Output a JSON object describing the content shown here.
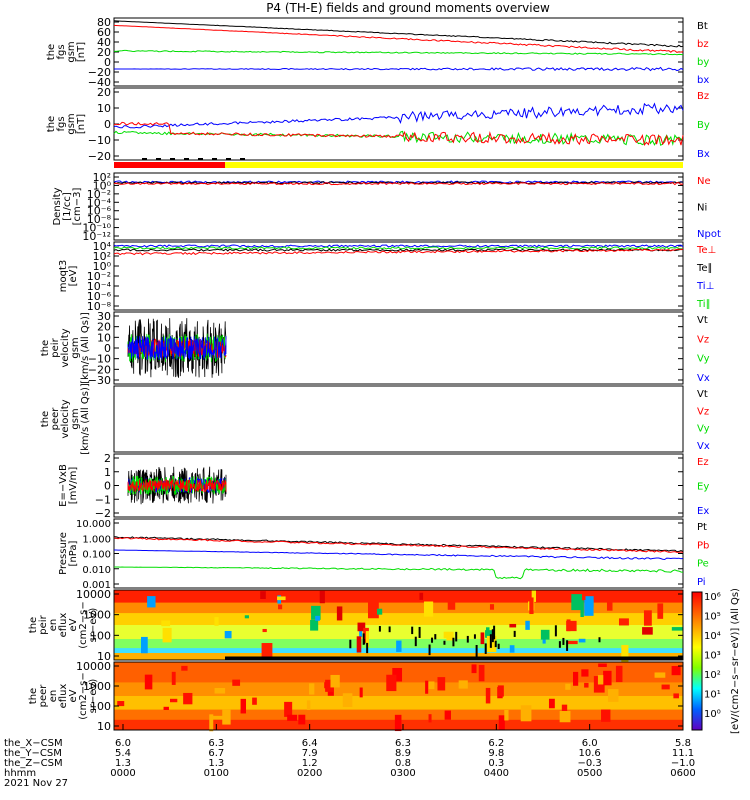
{
  "title": "P4 (TH-E) fields and ground moments overview",
  "colors": {
    "black": "#000000",
    "red": "#ff0000",
    "green": "#00dd00",
    "blue": "#0000ff",
    "yellow": "#ffff00"
  },
  "panels": [
    {
      "id": "fgs-gsm",
      "ylabel": [
        "the",
        "fgs",
        "gsm",
        "[nT]"
      ],
      "yticks": [
        "80",
        "60",
        "40",
        "20",
        "0",
        "−20",
        "−40"
      ],
      "ymin": -40,
      "ymax": 80,
      "legend": [
        {
          "text": "Bt",
          "color": "black"
        },
        {
          "text": "bz",
          "color": "red"
        },
        {
          "text": "by",
          "color": "green"
        },
        {
          "text": "bx",
          "color": "blue"
        }
      ]
    },
    {
      "id": "fgs-gsm2",
      "ylabel": [
        "the",
        "fgs",
        "gsm",
        "[nT]"
      ],
      "yticks": [
        "20",
        "10",
        "0",
        "−10",
        "−20"
      ],
      "ymin": -25,
      "ymax": 30,
      "legend": [
        {
          "text": "Bz",
          "color": "red"
        },
        {
          "text": "By",
          "color": "green"
        },
        {
          "text": "Bx",
          "color": "blue"
        }
      ]
    },
    {
      "id": "density",
      "ylabel": [
        "Density",
        "[1/cc]",
        "[cm−3]"
      ],
      "yticks": [
        "10²",
        "10⁰",
        "10⁻²",
        "10⁻⁴",
        "10⁻⁶",
        "10⁻⁸",
        "10⁻¹⁰",
        "10⁻¹²"
      ],
      "legend": [
        {
          "text": "Ne",
          "color": "red"
        },
        {
          "text": "Ni",
          "color": "black"
        },
        {
          "text": "Npot",
          "color": "blue"
        }
      ]
    },
    {
      "id": "temp",
      "ylabel": [
        "moqt3",
        "[eV]"
      ],
      "yticks": [
        "10⁴",
        "10²",
        "10⁰",
        "10⁻²",
        "10⁻⁴",
        "10⁻⁶",
        "10⁻⁸"
      ],
      "legend": [
        {
          "text": "Te⊥",
          "color": "red"
        },
        {
          "text": "Te∥",
          "color": "black"
        },
        {
          "text": "Ti⊥",
          "color": "blue"
        },
        {
          "text": "Ti∥",
          "color": "green"
        }
      ]
    },
    {
      "id": "peir-vel",
      "ylabel": [
        "the",
        "peir",
        "velocity",
        "gsm",
        "[km/s (All Qs)]"
      ],
      "yticks": [
        "30",
        "20",
        "10",
        "0",
        "−10",
        "−20",
        "−30"
      ],
      "ymin": -30,
      "ymax": 30,
      "legend": [
        {
          "text": "Vt",
          "color": "black"
        },
        {
          "text": "Vz",
          "color": "red"
        },
        {
          "text": "Vy",
          "color": "green"
        },
        {
          "text": "Vx",
          "color": "blue"
        }
      ]
    },
    {
      "id": "peer-vel",
      "ylabel": [
        "the",
        "peer",
        "velocity",
        "gsm",
        "[km/s (All Qs)]"
      ],
      "yticks": [],
      "legend": [
        {
          "text": "Vt",
          "color": "black"
        },
        {
          "text": "Vz",
          "color": "red"
        },
        {
          "text": "Vy",
          "color": "green"
        },
        {
          "text": "Vx",
          "color": "blue"
        }
      ]
    },
    {
      "id": "efield",
      "ylabel": [
        "E=−VxB",
        "[mV/m]"
      ],
      "yticks": [
        "2",
        "1",
        "0",
        "−1",
        "−2"
      ],
      "ymin": -2,
      "ymax": 2,
      "legend": [
        {
          "text": "Ez",
          "color": "red"
        },
        {
          "text": "Ey",
          "color": "green"
        },
        {
          "text": "Ex",
          "color": "blue"
        }
      ]
    },
    {
      "id": "pressure",
      "ylabel": [
        "Pressure",
        "[nPa]"
      ],
      "yticks": [
        "10.000",
        "1.000",
        "0.100",
        "0.010",
        "0.001"
      ],
      "legend": [
        {
          "text": "Pt",
          "color": "black"
        },
        {
          "text": "Pb",
          "color": "red"
        },
        {
          "text": "Pe",
          "color": "green"
        },
        {
          "text": "Pi",
          "color": "blue"
        }
      ]
    },
    {
      "id": "peir-spec",
      "ylabel": [
        "the",
        "peir",
        "en",
        "eflux",
        "eV",
        "(cm2−s−",
        "sr−eV)"
      ],
      "yticks": [
        "10000",
        "1000",
        "100",
        "10"
      ]
    },
    {
      "id": "peer-spec",
      "ylabel": [
        "the",
        "peer",
        "en",
        "eflux",
        "eV",
        "(cm2−s−",
        "sr−eV)"
      ],
      "yticks": [
        "10000",
        "1000",
        "100",
        "10"
      ]
    }
  ],
  "colorbar": {
    "labels": [
      "10⁶",
      "10⁵",
      "10⁴",
      "10³",
      "10²",
      "10¹",
      "10⁰"
    ],
    "title": "[eV/(cm2−s−sr−eV)] (All Qs)"
  },
  "xaxis": {
    "row_labels": [
      "the_X−CSM",
      "the_Y−CSM",
      "the_Z−CSM",
      "hhmm"
    ],
    "date": "2021 Nov 27",
    "ticks": [
      {
        "x": "6.0",
        "y": "5.4",
        "z": "1.3",
        "hhmm": "0000"
      },
      {
        "x": "6.3",
        "y": "6.7",
        "z": "1.3",
        "hhmm": "0100"
      },
      {
        "x": "6.4",
        "y": "7.9",
        "z": "1.2",
        "hhmm": "0200"
      },
      {
        "x": "6.3",
        "y": "8.9",
        "z": "0.8",
        "hhmm": "0300"
      },
      {
        "x": "6.2",
        "y": "9.8",
        "z": "0.3",
        "hhmm": "0400"
      },
      {
        "x": "6.0",
        "y": "10.6",
        "z": "−0.3",
        "hhmm": "0500"
      },
      {
        "x": "5.8",
        "y": "11.1",
        "z": "−1.0",
        "hhmm": "0600"
      }
    ]
  }
}
